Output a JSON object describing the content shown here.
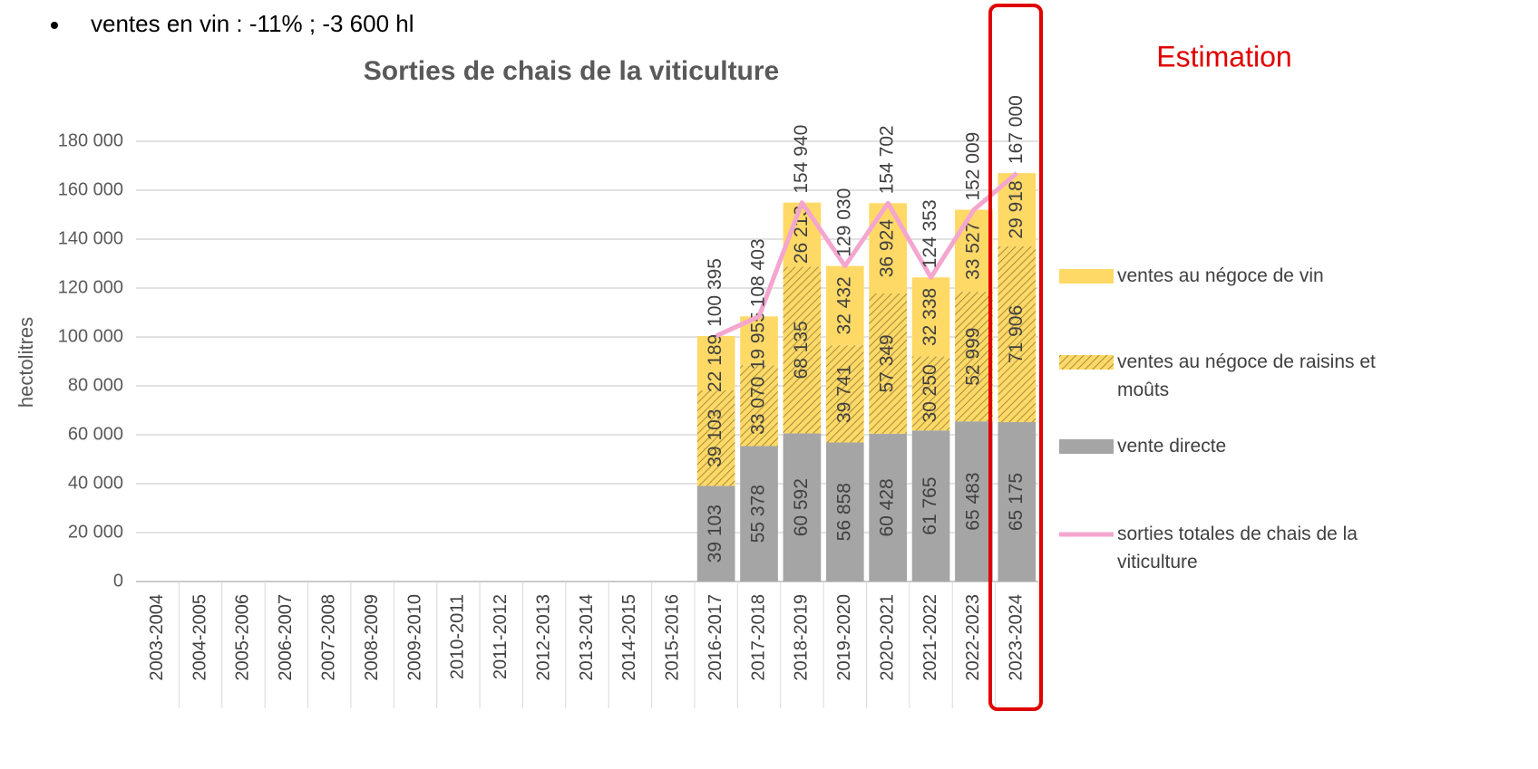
{
  "chart_data": {
    "type": "bar",
    "stacked": true,
    "title": "Sorties de chais de la viticulture",
    "annotations": [
      "ventes en vin : -11% ; -3 600 hl",
      "Estimation"
    ],
    "y_label": "hectolitres",
    "categories": [
      "2003-2004",
      "2004-2005",
      "2005-2006",
      "2006-2007",
      "2007-2008",
      "2008-2009",
      "2009-2010",
      "2010-2011",
      "2011-2012",
      "2012-2013",
      "2013-2014",
      "2014-2015",
      "2015-2016",
      "2016-2017",
      "2017-2018",
      "2018-2019",
      "2019-2020",
      "2020-2021",
      "2021-2022",
      "2022-2023",
      "2023-2024"
    ],
    "series": [
      {
        "name": "vente directe",
        "color": "#a5a5a5",
        "values": [
          null,
          null,
          null,
          null,
          null,
          null,
          null,
          null,
          null,
          null,
          null,
          null,
          null,
          39103,
          55378,
          60592,
          56858,
          60428,
          61765,
          65483,
          65175
        ],
        "value_labels": [
          null,
          null,
          null,
          null,
          null,
          null,
          null,
          null,
          null,
          null,
          null,
          null,
          null,
          "39 103",
          "55 378",
          "60 592",
          "56 858",
          "60 428",
          "61 765",
          "65 483",
          "65 175"
        ]
      },
      {
        "name": "ventes au négoce de raisins et moûts",
        "color": "#ffd966",
        "hatch": "#8c7a3a",
        "values": [
          null,
          null,
          null,
          null,
          null,
          null,
          null,
          null,
          null,
          null,
          null,
          null,
          null,
          39103,
          33070,
          68135,
          39741,
          57349,
          30250,
          52999,
          71906
        ],
        "value_labels": [
          null,
          null,
          null,
          null,
          null,
          null,
          null,
          null,
          null,
          null,
          null,
          null,
          null,
          "39 103",
          "33 070",
          "68 135",
          "39 741",
          "57 349",
          "30 250",
          "52 999",
          "71 906"
        ]
      },
      {
        "name": "ventes au négoce de vin",
        "color": "#ffd966",
        "values": [
          null,
          null,
          null,
          null,
          null,
          null,
          null,
          null,
          null,
          null,
          null,
          null,
          null,
          22189,
          19955,
          26213,
          32432,
          36924,
          32338,
          33527,
          29918
        ],
        "value_labels": [
          null,
          null,
          null,
          null,
          null,
          null,
          null,
          null,
          null,
          null,
          null,
          null,
          null,
          "22 189",
          "19 955",
          "26 213",
          "32 432",
          "36 924",
          "32 338",
          "33 527",
          "29 918"
        ]
      },
      {
        "name": "sorties totales de chais de la viticulture",
        "color": "#f4a6cf",
        "type": "line",
        "values": [
          null,
          null,
          null,
          null,
          null,
          null,
          null,
          null,
          null,
          null,
          null,
          null,
          null,
          100395,
          108403,
          154940,
          129030,
          154702,
          124353,
          152009,
          167000
        ],
        "value_labels": [
          null,
          null,
          null,
          null,
          null,
          null,
          null,
          null,
          null,
          null,
          null,
          null,
          null,
          "100 395",
          "108 403",
          "154 940",
          "129 030",
          "154 702",
          "124 353",
          "152 009",
          "167 000"
        ]
      }
    ],
    "ylim": [
      0,
      180000
    ],
    "yticks": [
      0,
      {
        "value": 20000,
        "label": "20 000"
      },
      {
        "value": 40000,
        "label": "40 000"
      },
      {
        "value": 60000,
        "label": "60 000"
      },
      {
        "value": 80000,
        "label": "80 000"
      },
      {
        "value": 100000,
        "label": "100 000"
      },
      {
        "value": 120000,
        "label": "120 000"
      },
      {
        "value": 140000,
        "label": "140 000"
      },
      {
        "value": 160000,
        "label": "160 000"
      },
      {
        "value": 180000,
        "label": "180 000"
      }
    ],
    "grid": true,
    "legend": "right"
  }
}
